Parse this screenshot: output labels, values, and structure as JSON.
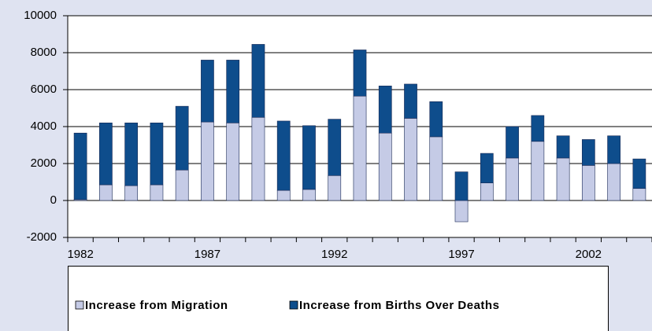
{
  "chart_data": {
    "type": "stacked_bar",
    "categories": [
      "1982",
      null,
      null,
      null,
      null,
      "1987",
      null,
      null,
      null,
      null,
      "1992",
      null,
      null,
      null,
      null,
      "1997",
      null,
      null,
      null,
      null,
      "2002",
      null,
      null
    ],
    "series": [
      {
        "name": "Increase from Migration",
        "color": "#c5cbe6",
        "values": [
          50,
          850,
          800,
          850,
          1650,
          4250,
          4200,
          4500,
          550,
          600,
          1350,
          5650,
          3650,
          4450,
          3450,
          -1150,
          950,
          2300,
          3200,
          2300,
          1900,
          2000,
          650
        ]
      },
      {
        "name": "Increase from Births Over Deaths",
        "color": "#0e4d8c",
        "values": [
          3600,
          3350,
          3400,
          3350,
          3450,
          3350,
          3400,
          3950,
          3750,
          3450,
          3050,
          2500,
          2550,
          1850,
          1900,
          1550,
          1600,
          1700,
          1400,
          1200,
          1400,
          1500,
          1600
        ]
      }
    ],
    "ylim": [
      -2000,
      10000
    ],
    "yticks": [
      -2000,
      0,
      2000,
      4000,
      6000,
      8000,
      10000
    ],
    "grid": true,
    "legend": "bottom"
  }
}
